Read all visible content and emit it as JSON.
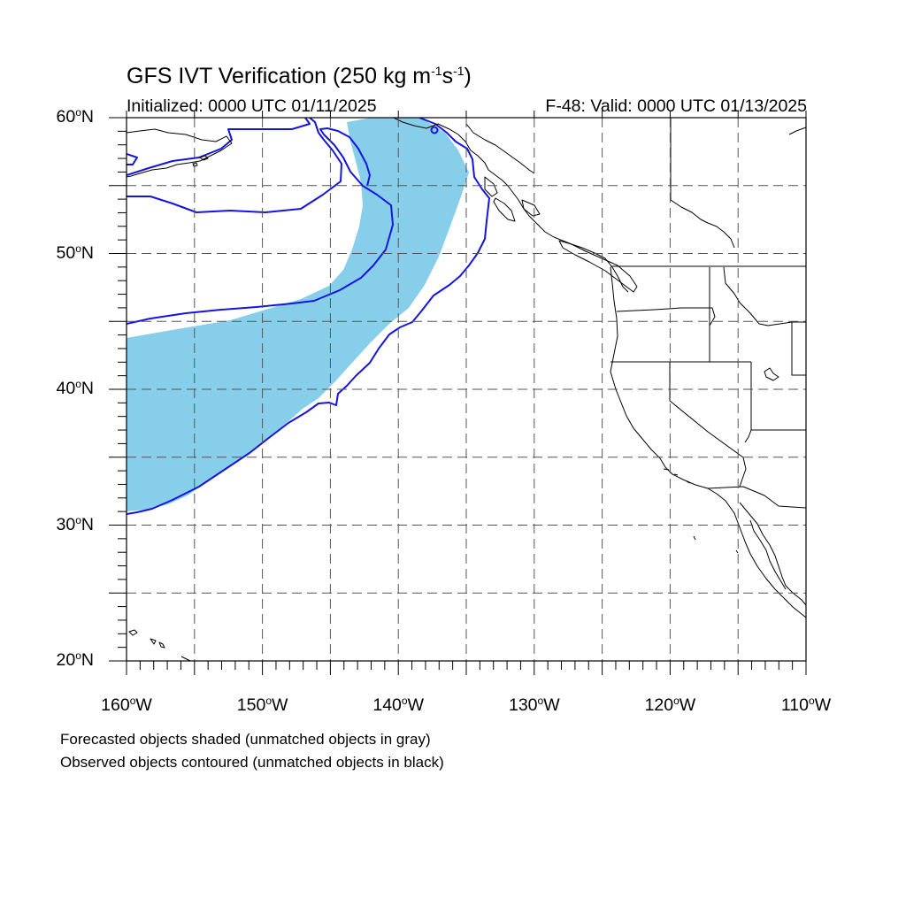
{
  "title": {
    "prefix": "GFS IVT Verification (250 kg m",
    "sup1": "-1",
    "mid": "s",
    "sup2": "-1",
    "suffix": ")"
  },
  "initialized": "Initialized: 0000 UTC 01/11/2025",
  "valid": "F-48: Valid: 0000 UTC 01/13/2025",
  "map": {
    "lon_range": [
      -160,
      -110
    ],
    "lat_range": [
      20,
      60
    ],
    "lat_labels": [
      {
        "lat": 60,
        "num": "60",
        "hemi": "N"
      },
      {
        "lat": 50,
        "num": "50",
        "hemi": "N"
      },
      {
        "lat": 40,
        "num": "40",
        "hemi": "N"
      },
      {
        "lat": 30,
        "num": "30",
        "hemi": "N"
      },
      {
        "lat": 20,
        "num": "20",
        "hemi": "N"
      }
    ],
    "lon_labels": [
      {
        "lon": -160,
        "num": "160",
        "hemi": "W"
      },
      {
        "lon": -150,
        "num": "150",
        "hemi": "W"
      },
      {
        "lon": -140,
        "num": "140",
        "hemi": "W"
      },
      {
        "lon": -130,
        "num": "130",
        "hemi": "W"
      },
      {
        "lon": -120,
        "num": "120",
        "hemi": "W"
      },
      {
        "lon": -110,
        "num": "110",
        "hemi": "W"
      }
    ],
    "gridlines": "dashed every 5 degrees",
    "colors": {
      "forecast_fill": "#87ceeb",
      "observed_contour": "#1515dd",
      "coastline": "#000000",
      "grid": "#555555"
    }
  },
  "footnotes": [
    "Forecasted objects shaded (unmatched objects in gray)",
    "Observed objects contoured (unmatched objects in black)"
  ]
}
